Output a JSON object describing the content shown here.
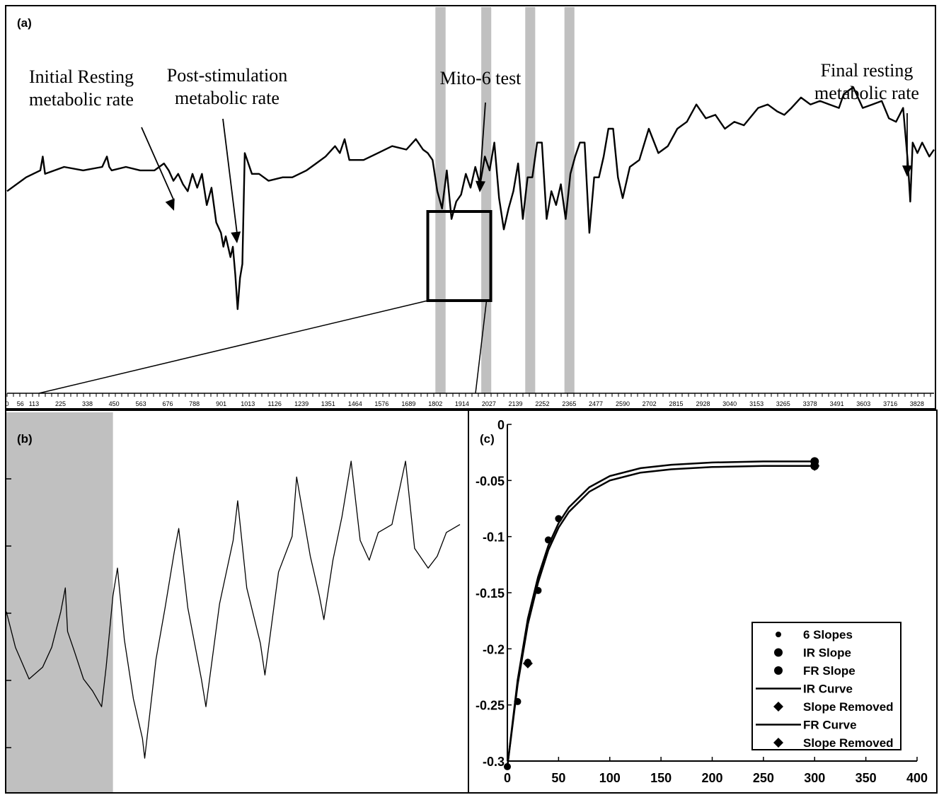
{
  "chart_data": [
    {
      "panel": "(a)",
      "type": "line",
      "x_ticks": [
        "0",
        "56",
        "113",
        "225",
        "338",
        "450",
        "563",
        "676",
        "788",
        "901",
        "1013",
        "1126",
        "1239",
        "1351",
        "1464",
        "1576",
        "1689",
        "1802",
        "1914",
        "2027",
        "2139",
        "2252",
        "2365",
        "2477",
        "2590",
        "2702",
        "2815",
        "2928",
        "3040",
        "3153",
        "3265",
        "3378",
        "3491",
        "3603",
        "3716",
        "3828"
      ],
      "xlim": [
        0,
        3900
      ],
      "shaded_x_ranges": [
        [
          1802,
          1845
        ],
        [
          1995,
          2037
        ],
        [
          2180,
          2222
        ],
        [
          2345,
          2387
        ]
      ],
      "zoom_box_x_range": [
        1770,
        2035
      ],
      "annotations": [
        {
          "label": "Initial Resting\nmetabolic rate",
          "x": 640
        },
        {
          "label": "Post-stimulation\nmetabolic rate",
          "x": 940
        },
        {
          "label": "Mito-6 test",
          "x": 1985
        },
        {
          "label": "Final resting\nmetabolic rate",
          "x": 3790
        }
      ],
      "series": [
        {
          "name": "",
          "x": [
            0,
            80,
            140,
            150,
            160,
            240,
            320,
            400,
            420,
            430,
            440,
            500,
            560,
            620,
            660,
            680,
            700,
            720,
            740,
            760,
            780,
            800,
            820,
            840,
            860,
            880,
            900,
            910,
            920,
            940,
            950,
            960,
            970,
            980,
            990,
            1000,
            1010,
            1030,
            1060,
            1100,
            1160,
            1200,
            1260,
            1300,
            1340,
            1380,
            1400,
            1420,
            1440,
            1500,
            1560,
            1620,
            1680,
            1720,
            1750,
            1770,
            1790,
            1810,
            1830,
            1850,
            1870,
            1890,
            1910,
            1930,
            1950,
            1970,
            1990,
            2010,
            2030,
            2050,
            2070,
            2090,
            2110,
            2130,
            2150,
            2170,
            2190,
            2210,
            2230,
            2250,
            2270,
            2290,
            2310,
            2330,
            2350,
            2370,
            2390,
            2410,
            2430,
            2450,
            2470,
            2490,
            2510,
            2530,
            2550,
            2570,
            2590,
            2620,
            2660,
            2700,
            2740,
            2780,
            2820,
            2860,
            2900,
            2940,
            2980,
            3020,
            3060,
            3100,
            3160,
            3200,
            3240,
            3270,
            3300,
            3340,
            3380,
            3420,
            3460,
            3500,
            3520,
            3560,
            3600,
            3640,
            3680,
            3710,
            3740,
            3770,
            3790,
            3800,
            3810,
            3830,
            3850,
            3880,
            3900
          ],
          "y": [
            56,
            60,
            62,
            66,
            61,
            63,
            62,
            63,
            66,
            63,
            62,
            63,
            62,
            62,
            64,
            62,
            59,
            61,
            58,
            56,
            61,
            57,
            61,
            52,
            57,
            47,
            44,
            40,
            43,
            37,
            40,
            32,
            22,
            31,
            35,
            67,
            65,
            61,
            61,
            59,
            60,
            60,
            62,
            64,
            66,
            69,
            67,
            71,
            65,
            65,
            67,
            69,
            68,
            71,
            68,
            67,
            65,
            56,
            51,
            62,
            48,
            53,
            55,
            61,
            57,
            63,
            58,
            66,
            62,
            70,
            54,
            45,
            51,
            56,
            64,
            48,
            60,
            60,
            70,
            70,
            48,
            56,
            52,
            58,
            48,
            61,
            66,
            70,
            70,
            44,
            60,
            60,
            66,
            74,
            74,
            60,
            54,
            63,
            65,
            74,
            67,
            69,
            74,
            76,
            81,
            77,
            78,
            74,
            76,
            75,
            80,
            81,
            79,
            78,
            80,
            83,
            81,
            82,
            81,
            80,
            84,
            86,
            80,
            81,
            82,
            77,
            76,
            80,
            64,
            53,
            70,
            67,
            70,
            66,
            68
          ]
        }
      ]
    },
    {
      "panel": "(b)",
      "type": "line",
      "shaded_x_range": [
        0,
        0.235
      ],
      "series": [
        {
          "name": "",
          "x": [
            0,
            0.02,
            0.05,
            0.08,
            0.1,
            0.12,
            0.13,
            0.135,
            0.15,
            0.17,
            0.19,
            0.21,
            0.22,
            0.235,
            0.245,
            0.26,
            0.28,
            0.3,
            0.305,
            0.33,
            0.35,
            0.37,
            0.38,
            0.4,
            0.43,
            0.44,
            0.47,
            0.5,
            0.51,
            0.53,
            0.56,
            0.57,
            0.6,
            0.63,
            0.64,
            0.67,
            0.69,
            0.7,
            0.72,
            0.74,
            0.76,
            0.78,
            0.8,
            0.82,
            0.85,
            0.88,
            0.9,
            0.93,
            0.95,
            0.97,
            1.0
          ],
          "y": [
            0.42,
            0.33,
            0.25,
            0.28,
            0.33,
            0.42,
            0.48,
            0.37,
            0.32,
            0.25,
            0.22,
            0.18,
            0.28,
            0.46,
            0.53,
            0.35,
            0.2,
            0.1,
            0.05,
            0.3,
            0.43,
            0.57,
            0.63,
            0.43,
            0.25,
            0.18,
            0.44,
            0.6,
            0.7,
            0.48,
            0.34,
            0.26,
            0.52,
            0.61,
            0.76,
            0.56,
            0.46,
            0.4,
            0.55,
            0.66,
            0.8,
            0.6,
            0.55,
            0.62,
            0.64,
            0.8,
            0.58,
            0.53,
            0.56,
            0.62,
            0.64
          ]
        }
      ]
    },
    {
      "panel": "(c)",
      "type": "scatter",
      "xlim": [
        0,
        400
      ],
      "ylim": [
        -0.3,
        0
      ],
      "x_ticks": [
        0,
        50,
        100,
        150,
        200,
        250,
        300,
        350,
        400
      ],
      "y_ticks": [
        "0",
        "-0.05",
        "-0.1",
        "-0.15",
        "-0.2",
        "-0.25",
        "-0.3"
      ],
      "legend_position": "bottom-right",
      "legend": [
        "6 Slopes",
        "IR Slope",
        "FR Slope",
        "IR Curve",
        "Slope Removed",
        "FR Curve",
        "Slope Removed"
      ],
      "series": [
        {
          "name": "6 Slopes",
          "x": [
            0,
            10,
            20,
            30,
            40,
            50
          ],
          "y": [
            -0.305,
            -0.247,
            -0.212,
            -0.148,
            -0.103,
            -0.084
          ]
        },
        {
          "name": "IR Slope",
          "x": [
            300
          ],
          "y": [
            -0.033
          ]
        },
        {
          "name": "FR Slope",
          "x": [
            300
          ],
          "y": [
            -0.037
          ]
        },
        {
          "name": "IR Curve",
          "x": [
            0,
            10,
            20,
            30,
            40,
            50,
            60,
            80,
            100,
            130,
            160,
            200,
            250,
            300
          ],
          "y": [
            -0.305,
            -0.228,
            -0.173,
            -0.136,
            -0.108,
            -0.088,
            -0.074,
            -0.056,
            -0.046,
            -0.039,
            -0.036,
            -0.034,
            -0.033,
            -0.033
          ]
        },
        {
          "name": "Slope Removed",
          "x": [
            20
          ],
          "y": [
            -0.213
          ]
        },
        {
          "name": "FR Curve",
          "x": [
            0,
            10,
            20,
            30,
            40,
            50,
            60,
            80,
            100,
            130,
            160,
            200,
            250,
            300
          ],
          "y": [
            -0.305,
            -0.232,
            -0.178,
            -0.141,
            -0.112,
            -0.092,
            -0.078,
            -0.06,
            -0.05,
            -0.043,
            -0.04,
            -0.038,
            -0.037,
            -0.037
          ]
        },
        {
          "name": "Slope Removed",
          "x": [
            300
          ],
          "y": [
            -0.037
          ]
        }
      ]
    }
  ]
}
